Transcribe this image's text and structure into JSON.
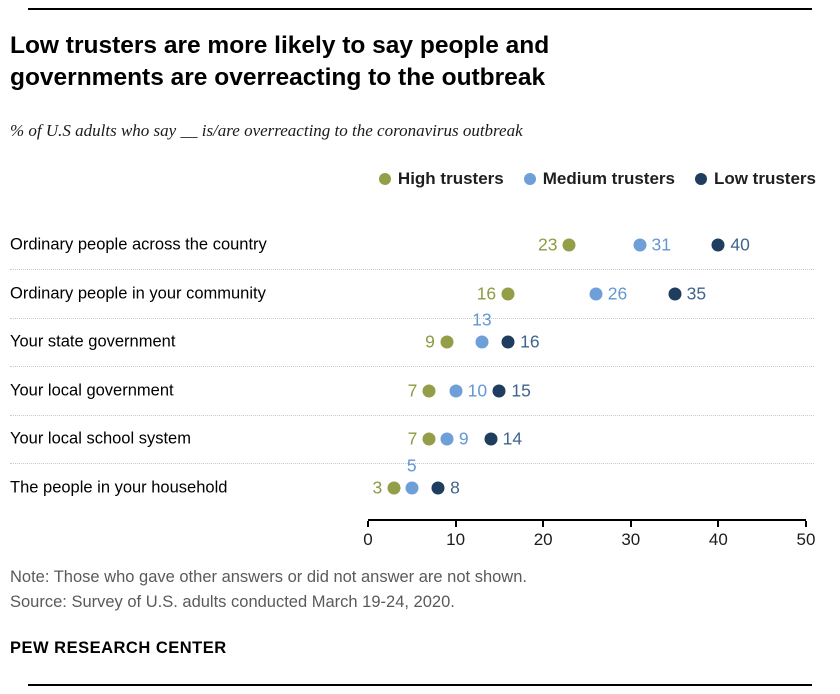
{
  "header": {
    "title": "Low trusters are more likely to say people and governments are overreacting to the outbreak",
    "subtitle": "% of U.S adults who say __ is/are overreacting to the coronavirus outbreak"
  },
  "chart_data": {
    "type": "scatter",
    "variant": "dot-plot",
    "legend_position": "top-right",
    "grid": "dotted-row-separators",
    "xlim": [
      0,
      50
    ],
    "xticks": [
      0,
      10,
      20,
      30,
      40,
      50
    ],
    "series": [
      {
        "name": "High trusters",
        "dot_color": "#949d48",
        "label_color": "#8e9a3f"
      },
      {
        "name": "Medium trusters",
        "dot_color": "#6f9fd8",
        "label_color": "#6397d4"
      },
      {
        "name": "Low trusters",
        "dot_color": "#1e3d5f",
        "label_color": "#41648e"
      }
    ],
    "categories": [
      "Ordinary people across the country",
      "Ordinary people in your community",
      "Your state government",
      "Your local government",
      "Your local school system",
      "The people in your household"
    ],
    "values": [
      [
        23,
        31,
        40
      ],
      [
        16,
        26,
        35
      ],
      [
        9,
        13,
        16
      ],
      [
        7,
        10,
        15
      ],
      [
        7,
        9,
        14
      ],
      [
        3,
        5,
        8
      ]
    ],
    "value_label_placement": [
      [
        "left",
        "right",
        "right"
      ],
      [
        "left",
        "right",
        "right"
      ],
      [
        "left",
        "above",
        "right"
      ],
      [
        "left",
        "right",
        "right"
      ],
      [
        "left",
        "right",
        "right"
      ],
      [
        "left",
        "above",
        "right"
      ]
    ]
  },
  "footer": {
    "note": "Note: Those who gave other answers or did not answer are not shown.",
    "source": "Source: Survey of U.S. adults conducted March 19-24, 2020.",
    "brand": "PEW RESEARCH CENTER"
  }
}
